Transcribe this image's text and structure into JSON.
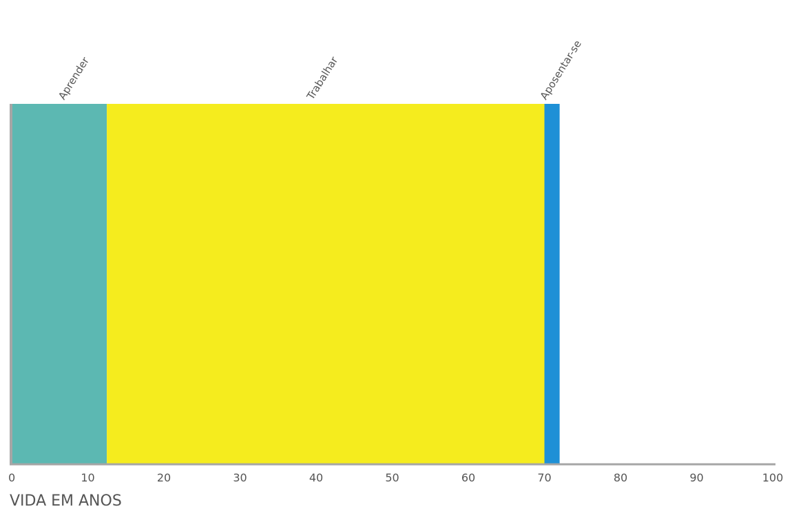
{
  "chart_data": {
    "type": "bar",
    "orientation": "horizontal-stacked",
    "title": "",
    "xlabel": "VIDA EM ANOS",
    "ylabel": "",
    "xlim": [
      0,
      100
    ],
    "xticks": [
      "0",
      "10",
      "20",
      "30",
      "40",
      "50",
      "60",
      "70",
      "80",
      "90",
      "100"
    ],
    "segments": [
      {
        "name": "Aprender",
        "start": 0,
        "end": 12.5,
        "color": "#5cb8b2"
      },
      {
        "name": "Trabalhar",
        "start": 12.5,
        "end": 70,
        "color": "#f5ec1e"
      },
      {
        "name": "Aposentar-se",
        "start": 70,
        "end": 72,
        "color": "#1e90d6"
      }
    ],
    "axis_color": "#a6a6a6",
    "grid": false,
    "legend": "none"
  }
}
